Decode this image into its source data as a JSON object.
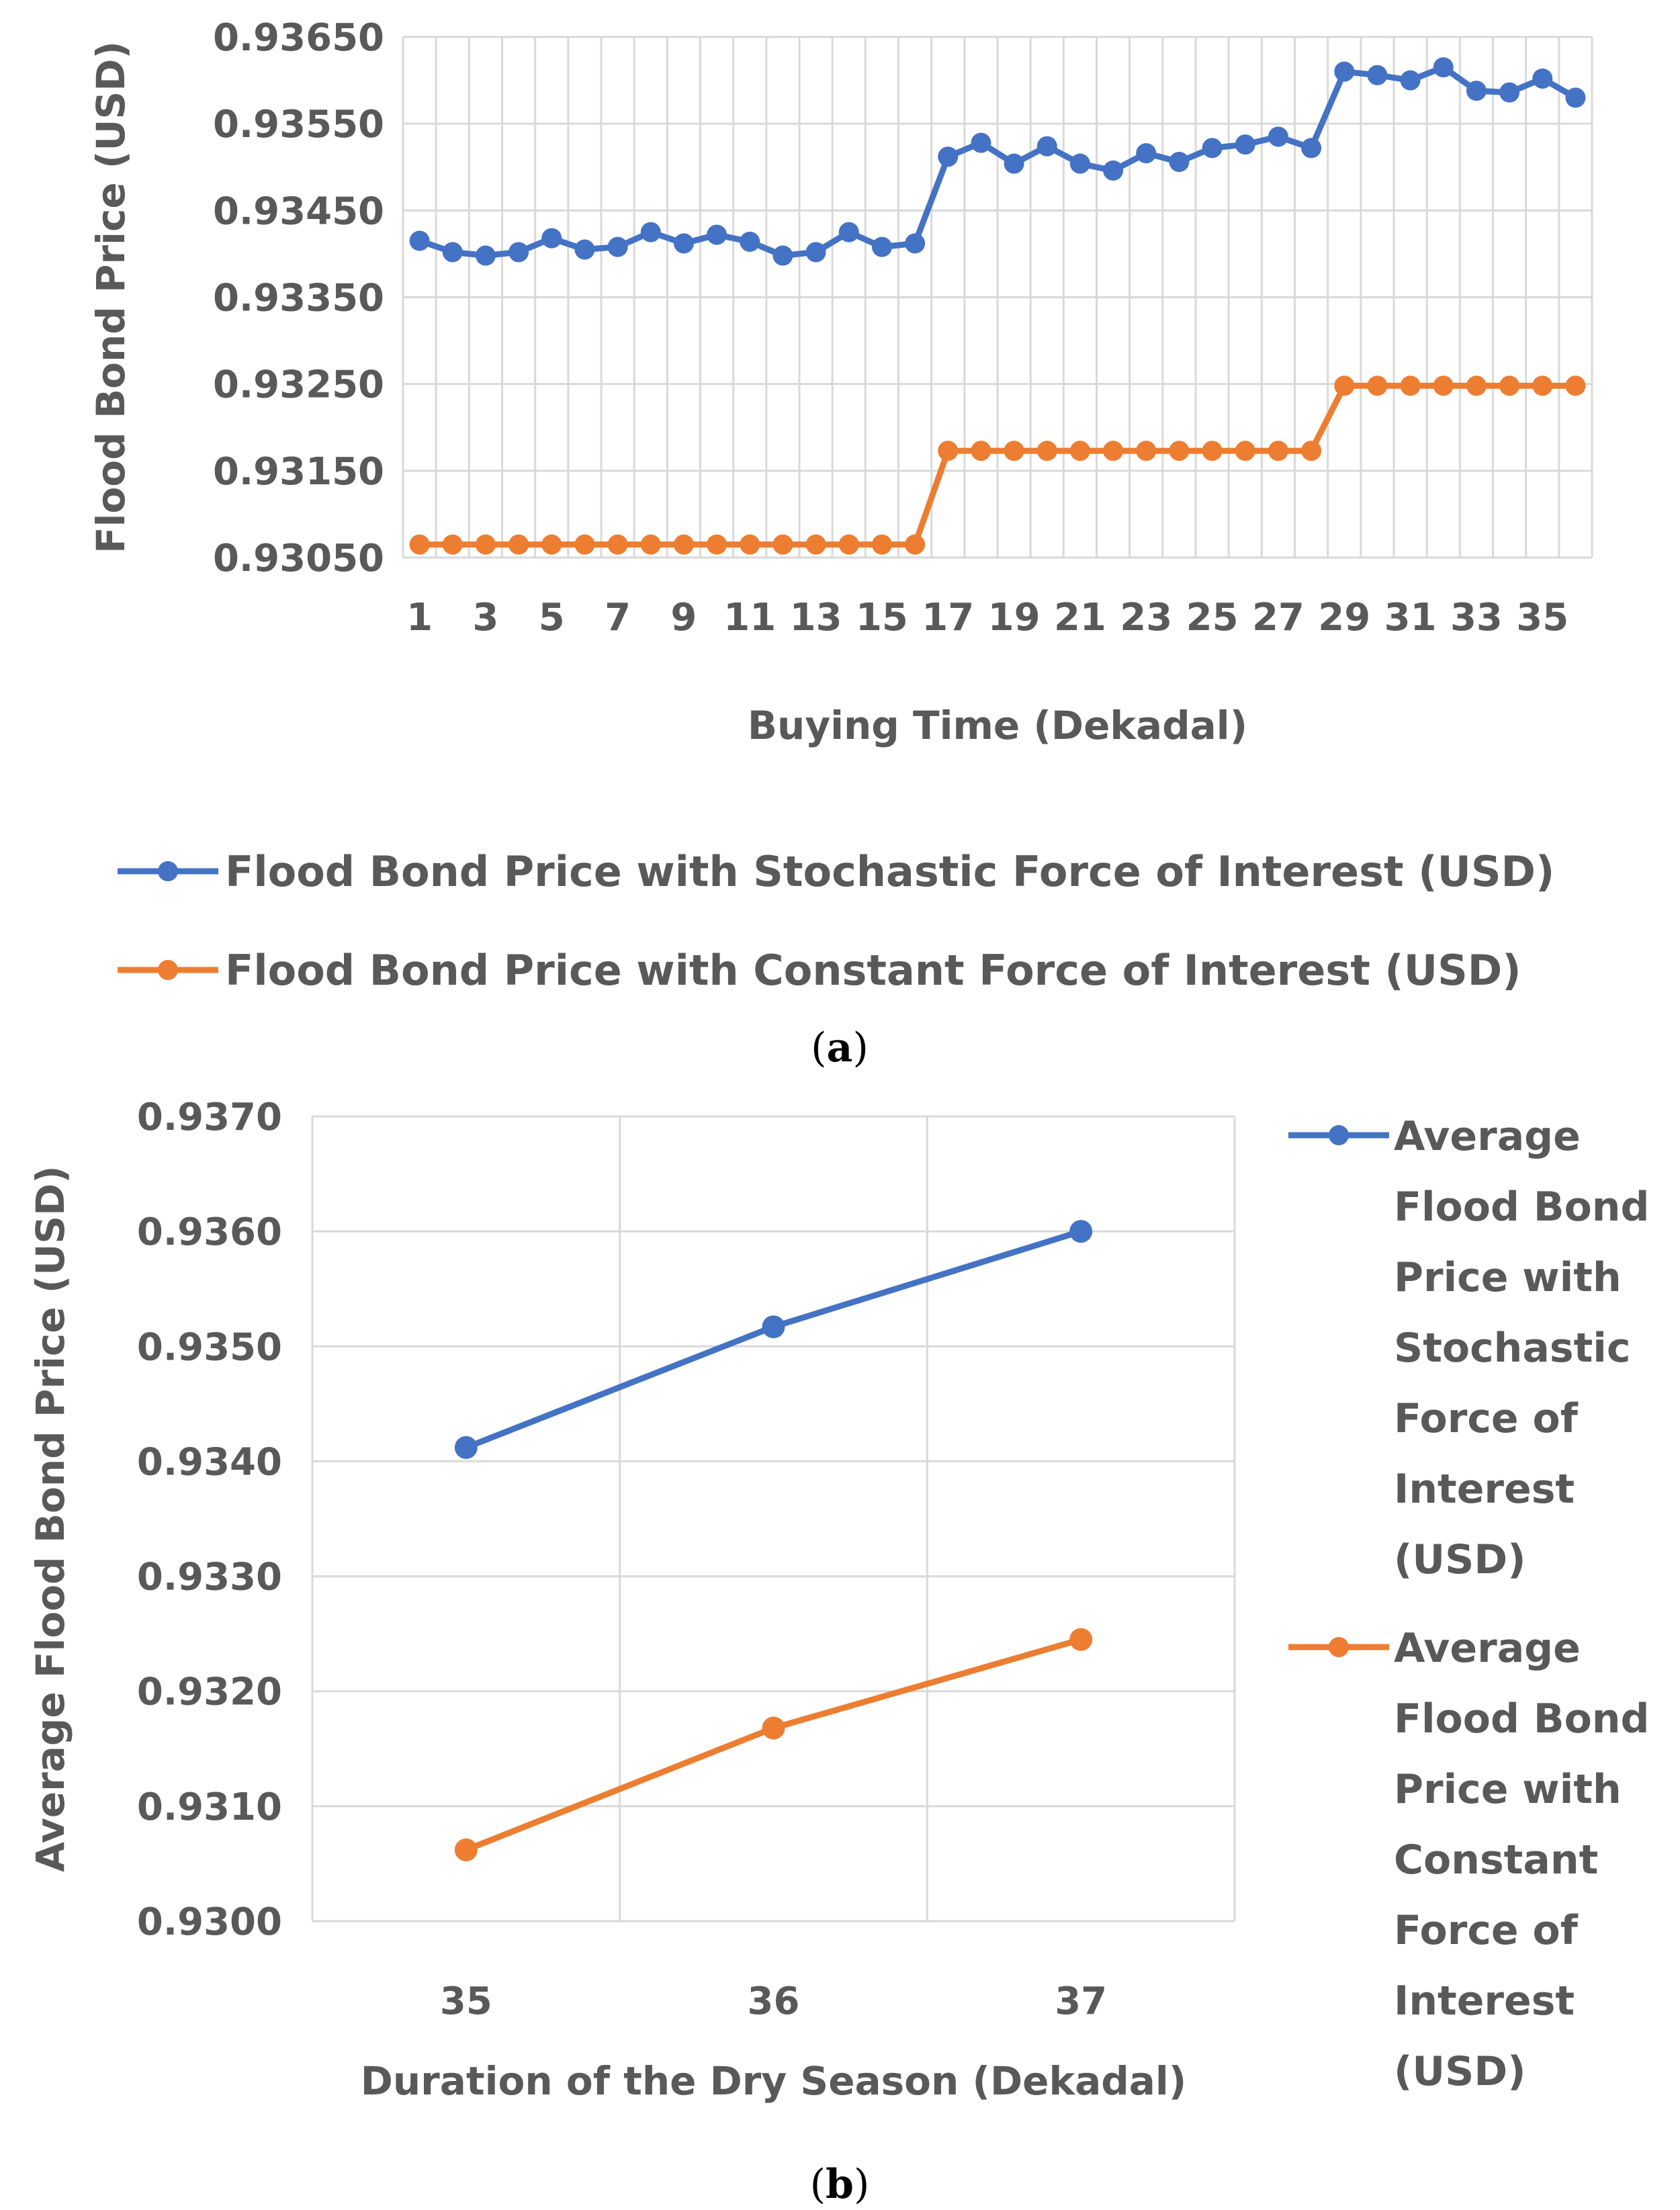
{
  "chart_data": [
    {
      "panel": "(a)",
      "panel_letter": "a",
      "type": "line",
      "title": "",
      "xlabel": "Buying Time (Dekadal)",
      "ylabel": "Flood Bond Price (USD)",
      "x": [
        1,
        2,
        3,
        4,
        5,
        6,
        7,
        8,
        9,
        10,
        11,
        12,
        13,
        14,
        15,
        16,
        17,
        18,
        19,
        20,
        21,
        22,
        23,
        24,
        25,
        26,
        27,
        28,
        29,
        30,
        31,
        32,
        33,
        34,
        35,
        36
      ],
      "x_tick_labels": [
        "1",
        "3",
        "5",
        "7",
        "9",
        "11",
        "13",
        "15",
        "17",
        "19",
        "21",
        "23",
        "25",
        "27",
        "29",
        "31",
        "33",
        "35"
      ],
      "y_tick_labels": [
        "0.93050",
        "0.93150",
        "0.93250",
        "0.93350",
        "0.93450",
        "0.93550",
        "0.93650"
      ],
      "ylim": [
        0.9305,
        0.9365
      ],
      "grid": true,
      "legend_position": "bottom",
      "series": [
        {
          "name": "Flood Bond Price with Stochastic Force of Interest (USD)",
          "color": "#4472C4",
          "values": [
            0.93415,
            0.93402,
            0.93398,
            0.93402,
            0.93418,
            0.93405,
            0.93408,
            0.93425,
            0.93412,
            0.93422,
            0.93414,
            0.93398,
            0.93402,
            0.93425,
            0.93408,
            0.93412,
            0.93512,
            0.93528,
            0.93504,
            0.93524,
            0.93504,
            0.93496,
            0.93516,
            0.93506,
            0.93522,
            0.93526,
            0.93535,
            0.93522,
            0.9361,
            0.93606,
            0.936,
            0.93615,
            0.93588,
            0.93586,
            0.93602,
            0.9358
          ]
        },
        {
          "name": "Flood Bond Price with Constant Force of Interest (USD)",
          "color": "#ED7D31",
          "values": [
            0.93065,
            0.93065,
            0.93065,
            0.93065,
            0.93065,
            0.93065,
            0.93065,
            0.93065,
            0.93065,
            0.93065,
            0.93065,
            0.93065,
            0.93065,
            0.93065,
            0.93065,
            0.93065,
            0.93173,
            0.93173,
            0.93173,
            0.93173,
            0.93173,
            0.93173,
            0.93173,
            0.93173,
            0.93173,
            0.93173,
            0.93173,
            0.93173,
            0.93248,
            0.93248,
            0.93248,
            0.93248,
            0.93248,
            0.93248,
            0.93248,
            0.93248
          ]
        }
      ]
    },
    {
      "panel": "(b)",
      "panel_letter": "b",
      "type": "line",
      "title": "",
      "xlabel": "Duration of the Dry Season (Dekadal)",
      "ylabel": "Average Flood Bond Price (USD)",
      "categories": [
        "35",
        "36",
        "37"
      ],
      "y_tick_labels": [
        "0.9300",
        "0.9310",
        "0.9320",
        "0.9330",
        "0.9340",
        "0.9350",
        "0.9360",
        "0.9370"
      ],
      "ylim": [
        0.93,
        0.937
      ],
      "grid": true,
      "legend_position": "right",
      "series": [
        {
          "name": "Average Flood Bond Price with Stochastic Force of Interest (USD)",
          "legend_lines": [
            "Average",
            "Flood Bond",
            "Price with",
            "Stochastic",
            "Force of",
            "Interest",
            "(USD)"
          ],
          "color": "#4472C4",
          "values": [
            0.93412,
            0.93517,
            0.936
          ]
        },
        {
          "name": "Average Flood Bond Price with Constant Force of Interest (USD)",
          "legend_lines": [
            "Average",
            "Flood Bond",
            "Price with",
            "Constant",
            "Force of",
            "Interest",
            "(USD)"
          ],
          "color": "#ED7D31",
          "values": [
            0.93062,
            0.93168,
            0.93245
          ]
        }
      ]
    }
  ]
}
